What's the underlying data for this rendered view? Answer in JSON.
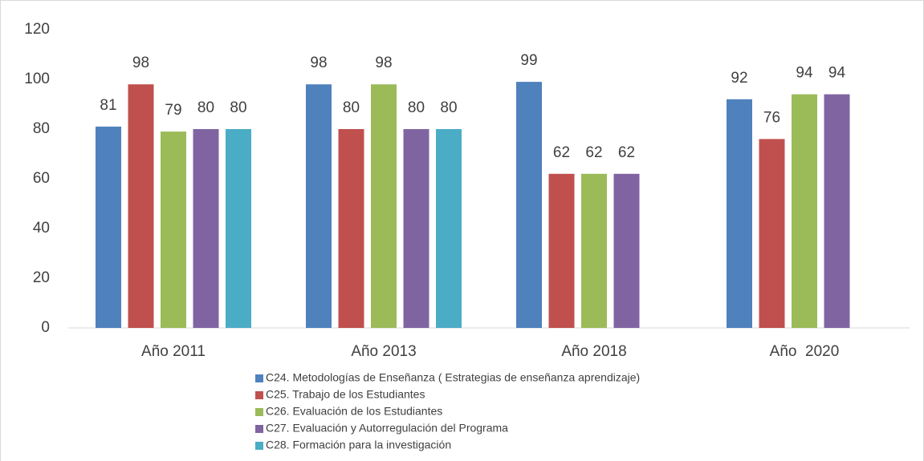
{
  "chart_data": {
    "type": "bar",
    "categories": [
      "Año 2011",
      "Año 2013",
      "Año 2018",
      "Año  2020"
    ],
    "series": [
      {
        "name": "C24. Metodologías de Enseñanza ( Estrategias de enseñanza aprendizaje)",
        "color": "#4f81bd",
        "values": [
          81,
          98,
          99,
          92
        ]
      },
      {
        "name": "C25. Trabajo de los Estudiantes",
        "color": "#c0504d",
        "values": [
          98,
          80,
          62,
          76
        ]
      },
      {
        "name": "C26. Evaluación de los Estudiantes",
        "color": "#9bbb59",
        "values": [
          79,
          98,
          62,
          94
        ]
      },
      {
        "name": "C27. Evaluación y Autorregulación del Programa",
        "color": "#8064a2",
        "values": [
          80,
          80,
          62,
          94
        ]
      },
      {
        "name": "C28. Formación para la investigación",
        "color": "#4bacc6",
        "values": [
          80,
          80,
          null,
          null
        ]
      }
    ],
    "ylim": [
      0,
      120
    ],
    "yticks": [
      0,
      20,
      40,
      60,
      80,
      100,
      120
    ],
    "grid": false,
    "legend": "bottom"
  }
}
